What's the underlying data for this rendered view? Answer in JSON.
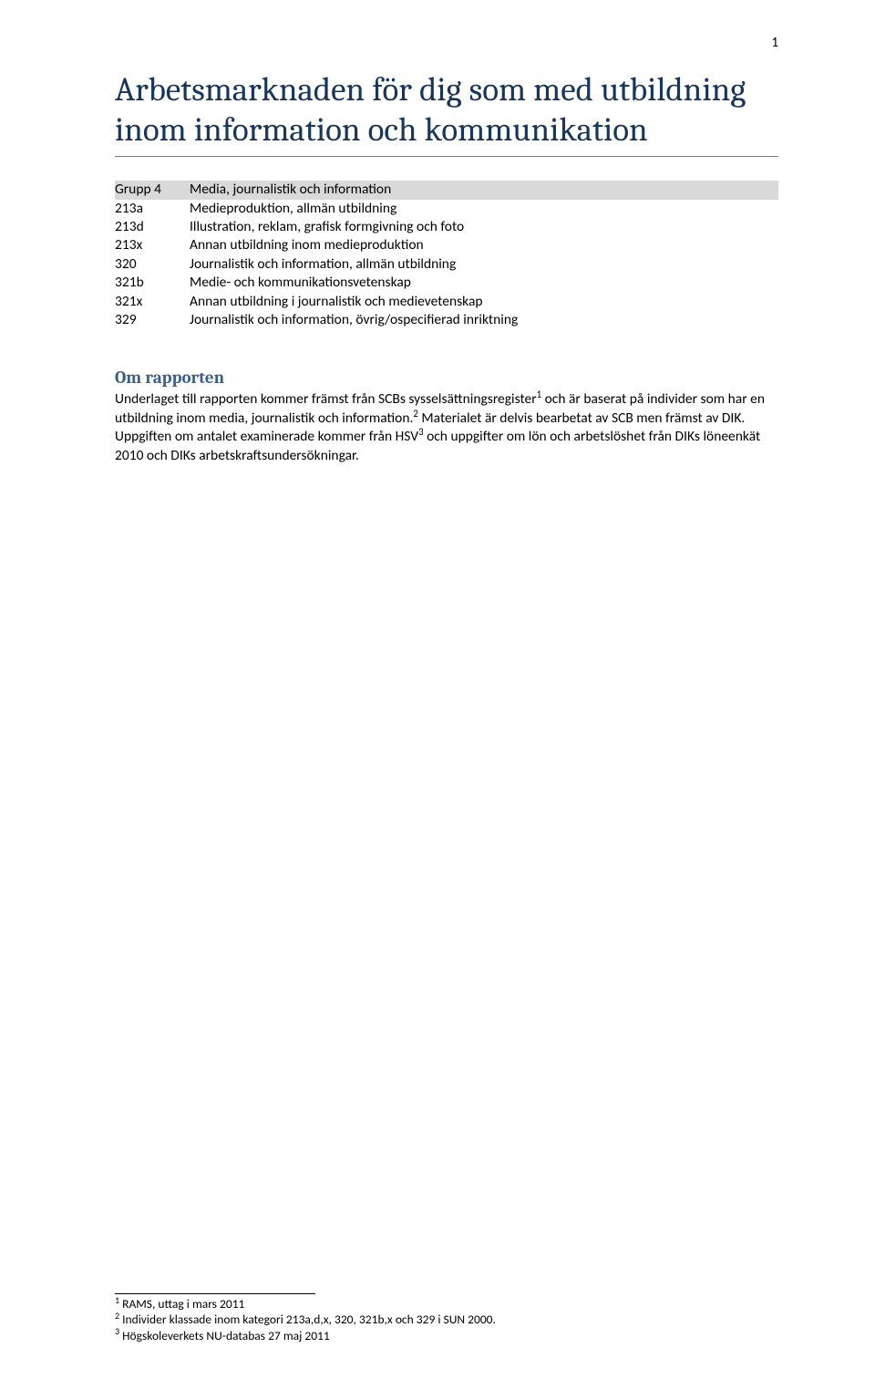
{
  "page_number": "1",
  "title": "Arbetsmarknaden för dig som med utbildning inom information och kommunikation",
  "colors": {
    "title_color": "#17365d",
    "title_rule_color": "#4f81bd",
    "section_color": "#365f91",
    "table_header_bg": "#d9d9d9",
    "body_text": "#000000",
    "page_bg": "#ffffff"
  },
  "typography": {
    "title_font": "Cambria",
    "title_size_pt": 28,
    "title_weight": 400,
    "section_font": "Cambria",
    "section_size_pt": 14,
    "section_weight": 700,
    "body_font": "Calibri",
    "body_size_pt": 11.5,
    "footnote_size_pt": 10
  },
  "codes_table": {
    "header": {
      "code": "Grupp 4",
      "label": "Media, journalistik och information"
    },
    "rows": [
      {
        "code": "213a",
        "label": "Medieproduktion, allmän utbildning"
      },
      {
        "code": "213d",
        "label": "Illustration, reklam, grafisk formgivning och foto"
      },
      {
        "code": "213x",
        "label": "Annan utbildning inom medieproduktion"
      },
      {
        "code": "320",
        "label": "Journalistik och information, allmän utbildning"
      },
      {
        "code": "321b",
        "label": "Medie- och kommunikationsvetenskap"
      },
      {
        "code": "321x",
        "label": "Annan utbildning i journalistik och medievetenskap"
      },
      {
        "code": "329",
        "label": "Journalistik och information, övrig/ospecifierad inriktning"
      }
    ]
  },
  "section_title": "Om rapporten",
  "body": {
    "s1": "Underlaget till rapporten kommer främst från SCBs sysselsättningsregister",
    "s2": " och är baserat på individer som har en utbildning inom media, journalistik och information.",
    "s3": " Materialet är delvis bearbetat av SCB men främst av DIK. Uppgiften om antalet examinerade kommer från HSV",
    "s4": " och uppgifter om lön och arbetslöshet från DIKs löneenkät 2010 och DIKs arbetskraftsundersökningar.",
    "fn1": "1",
    "fn2": "2",
    "fn3": "3"
  },
  "footnotes": [
    {
      "num": "1",
      "text": "RAMS, uttag i mars 2011"
    },
    {
      "num": "2",
      "text": "Individer klassade inom kategori 213a,d,x, 320, 321b,x och 329 i SUN 2000."
    },
    {
      "num": "3",
      "text": "Högskoleverkets NU-databas 27 maj 2011"
    }
  ]
}
